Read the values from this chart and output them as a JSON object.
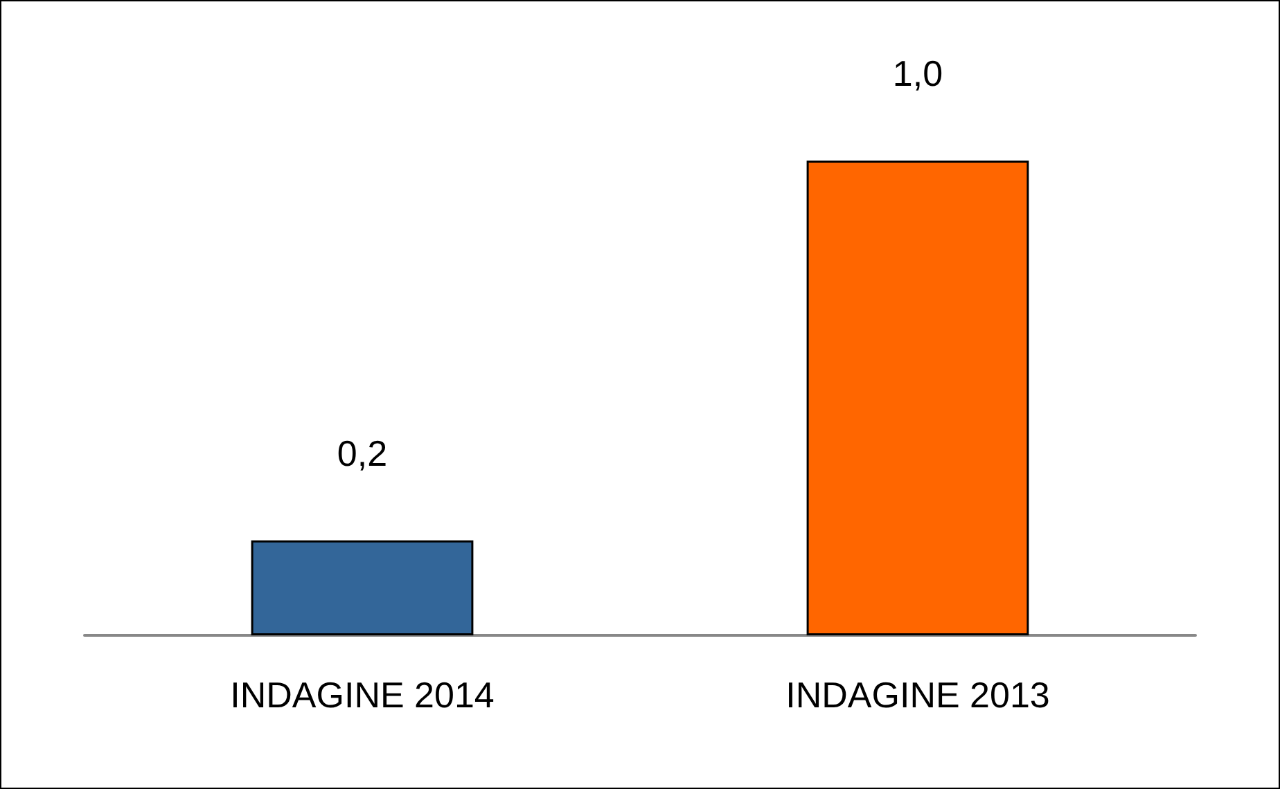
{
  "chart_data": {
    "type": "bar",
    "categories": [
      "INDAGINE 2014",
      "INDAGINE 2013"
    ],
    "values": [
      0.2,
      1.0
    ],
    "value_labels": [
      "0,2",
      "1,0"
    ],
    "colors": [
      "#336699",
      "#ff6600"
    ]
  }
}
